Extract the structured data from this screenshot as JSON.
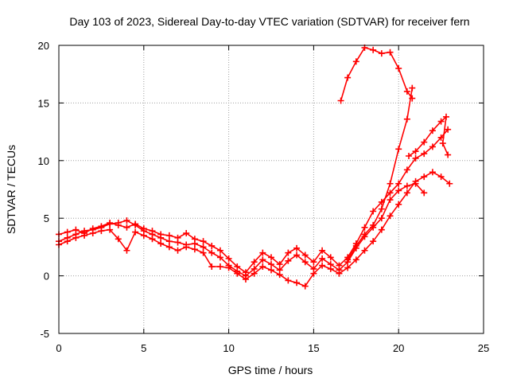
{
  "chart_data": {
    "type": "scatter",
    "title": "Day 103 of 2023, Sidereal Day-to-day VTEC variation (SDTVAR) for receiver fern",
    "xlabel": "GPS time / hours",
    "ylabel": "SDTVAR / TECUs",
    "xlim": [
      0,
      25
    ],
    "ylim": [
      -5,
      20
    ],
    "xticks": [
      0,
      5,
      10,
      15,
      20,
      25
    ],
    "yticks": [
      -5,
      0,
      5,
      10,
      15,
      20
    ],
    "xtick_labels": [
      "0",
      "5",
      "10",
      "15",
      "20",
      "25"
    ],
    "ytick_labels": [
      "-5",
      "0",
      "5",
      "10",
      "15",
      "20"
    ],
    "grid": true,
    "legend": "none",
    "marker": "plus",
    "series": [
      {
        "name": "s1",
        "color": "#ff0000",
        "points": [
          [
            0,
            3.6
          ],
          [
            0.5,
            3.8
          ],
          [
            1,
            4.0
          ],
          [
            1.5,
            3.7
          ],
          [
            2,
            4.1
          ],
          [
            2.5,
            4.3
          ],
          [
            3,
            4.6
          ],
          [
            3.5,
            4.4
          ],
          [
            4,
            4.2
          ],
          [
            4.5,
            4.5
          ],
          [
            5,
            4.1
          ],
          [
            5.5,
            3.9
          ],
          [
            6,
            3.6
          ],
          [
            6.5,
            3.5
          ],
          [
            7,
            3.3
          ],
          [
            7.5,
            3.7
          ],
          [
            8,
            3.2
          ],
          [
            8.5,
            3.0
          ],
          [
            9,
            2.6
          ],
          [
            9.5,
            2.2
          ],
          [
            10,
            1.5
          ],
          [
            10.5,
            0.8
          ],
          [
            11,
            0.3
          ],
          [
            11.5,
            1.2
          ],
          [
            12,
            2.0
          ],
          [
            12.5,
            1.6
          ],
          [
            13,
            1.0
          ],
          [
            13.5,
            2.0
          ],
          [
            14,
            2.4
          ],
          [
            14.5,
            1.8
          ],
          [
            15,
            1.2
          ],
          [
            15.5,
            2.2
          ],
          [
            16,
            1.6
          ],
          [
            16.5,
            0.9
          ],
          [
            17,
            1.6
          ],
          [
            17.5,
            2.8
          ],
          [
            18,
            4.2
          ],
          [
            18.5,
            5.6
          ],
          [
            19,
            6.4
          ],
          [
            19.5,
            7.2
          ],
          [
            20,
            8.0
          ],
          [
            20.5,
            9.2
          ],
          [
            21,
            10.2
          ],
          [
            21.5,
            10.6
          ],
          [
            22,
            11.2
          ],
          [
            22.5,
            12.0
          ],
          [
            22.9,
            12.7
          ]
        ]
      },
      {
        "name": "s2",
        "color": "#ff0000",
        "points": [
          [
            0,
            3.0
          ],
          [
            0.5,
            3.3
          ],
          [
            1,
            3.6
          ],
          [
            1.5,
            3.9
          ],
          [
            2,
            4.0
          ],
          [
            2.5,
            4.2
          ],
          [
            3,
            4.5
          ],
          [
            3.5,
            4.6
          ],
          [
            4,
            4.8
          ],
          [
            4.5,
            4.4
          ],
          [
            5,
            3.9
          ],
          [
            5.5,
            3.6
          ],
          [
            6,
            3.3
          ],
          [
            6.5,
            3.0
          ],
          [
            7,
            2.9
          ],
          [
            7.5,
            2.7
          ],
          [
            8,
            2.8
          ],
          [
            8.5,
            2.5
          ],
          [
            9,
            2.0
          ],
          [
            9.5,
            1.6
          ],
          [
            10,
            0.9
          ],
          [
            10.5,
            0.4
          ],
          [
            11,
            0.0
          ],
          [
            11.5,
            0.6
          ],
          [
            12,
            1.4
          ],
          [
            12.5,
            1.0
          ],
          [
            13,
            0.5
          ],
          [
            13.5,
            1.3
          ],
          [
            14,
            1.8
          ],
          [
            14.5,
            1.2
          ],
          [
            15,
            0.6
          ],
          [
            15.5,
            1.5
          ],
          [
            16,
            1.0
          ],
          [
            16.5,
            0.5
          ],
          [
            17,
            1.2
          ],
          [
            17.5,
            2.4
          ],
          [
            18,
            3.4
          ],
          [
            18.5,
            4.2
          ],
          [
            19,
            5.0
          ],
          [
            19.5,
            6.6
          ],
          [
            20,
            7.4
          ],
          [
            20.5,
            7.8
          ],
          [
            21,
            8.0
          ],
          [
            21.5,
            7.2
          ]
        ]
      },
      {
        "name": "s3",
        "color": "#ff0000",
        "points": [
          [
            0,
            2.7
          ],
          [
            0.5,
            3.0
          ],
          [
            1,
            3.3
          ],
          [
            1.5,
            3.5
          ],
          [
            2,
            3.7
          ],
          [
            2.5,
            3.9
          ],
          [
            3,
            4.0
          ],
          [
            3.5,
            3.2
          ],
          [
            4,
            2.2
          ],
          [
            4.5,
            3.8
          ],
          [
            5,
            3.5
          ],
          [
            5.5,
            3.2
          ],
          [
            6,
            2.8
          ],
          [
            6.5,
            2.5
          ],
          [
            7,
            2.2
          ],
          [
            7.5,
            2.5
          ],
          [
            8,
            2.3
          ],
          [
            8.5,
            2.0
          ],
          [
            9,
            0.8
          ],
          [
            9.5,
            0.8
          ],
          [
            10,
            0.7
          ],
          [
            10.5,
            0.2
          ],
          [
            11,
            -0.3
          ],
          [
            11.5,
            0.2
          ],
          [
            12,
            0.8
          ],
          [
            12.5,
            0.5
          ],
          [
            13,
            0.1
          ],
          [
            13.5,
            -0.4
          ],
          [
            14,
            -0.6
          ],
          [
            14.5,
            -0.9
          ],
          [
            15,
            0.2
          ],
          [
            15.5,
            0.9
          ],
          [
            16,
            0.6
          ],
          [
            16.5,
            0.2
          ],
          [
            17,
            0.7
          ],
          [
            17.5,
            1.4
          ],
          [
            18,
            2.2
          ],
          [
            18.5,
            3.0
          ],
          [
            19,
            4.0
          ],
          [
            19.5,
            5.2
          ],
          [
            20,
            6.2
          ],
          [
            20.5,
            7.2
          ],
          [
            21,
            8.2
          ],
          [
            21.5,
            8.6
          ],
          [
            22,
            9.0
          ],
          [
            22.5,
            8.6
          ],
          [
            23,
            8.0
          ]
        ]
      },
      {
        "name": "s4",
        "color": "#ff0000",
        "points": [
          [
            16.6,
            15.2
          ],
          [
            17,
            17.2
          ],
          [
            17.5,
            18.6
          ],
          [
            18,
            19.8
          ],
          [
            18.5,
            19.6
          ],
          [
            19,
            19.3
          ],
          [
            19.5,
            19.4
          ],
          [
            20,
            18.0
          ],
          [
            20.5,
            16.0
          ],
          [
            20.8,
            15.4
          ]
        ]
      },
      {
        "name": "s5",
        "color": "#ff0000",
        "points": [
          [
            17,
            1.4
          ],
          [
            17.5,
            2.6
          ],
          [
            18,
            3.6
          ],
          [
            18.5,
            4.4
          ],
          [
            19,
            5.8
          ],
          [
            19.5,
            8.0
          ],
          [
            20,
            11.0
          ],
          [
            20.5,
            13.6
          ],
          [
            20.8,
            16.3
          ]
        ]
      },
      {
        "name": "s6",
        "color": "#ff0000",
        "points": [
          [
            20.6,
            10.4
          ],
          [
            21,
            10.8
          ],
          [
            21.5,
            11.6
          ],
          [
            22,
            12.6
          ],
          [
            22.5,
            13.4
          ],
          [
            22.8,
            13.8
          ],
          [
            22.6,
            11.5
          ],
          [
            22.9,
            10.5
          ]
        ]
      }
    ]
  }
}
